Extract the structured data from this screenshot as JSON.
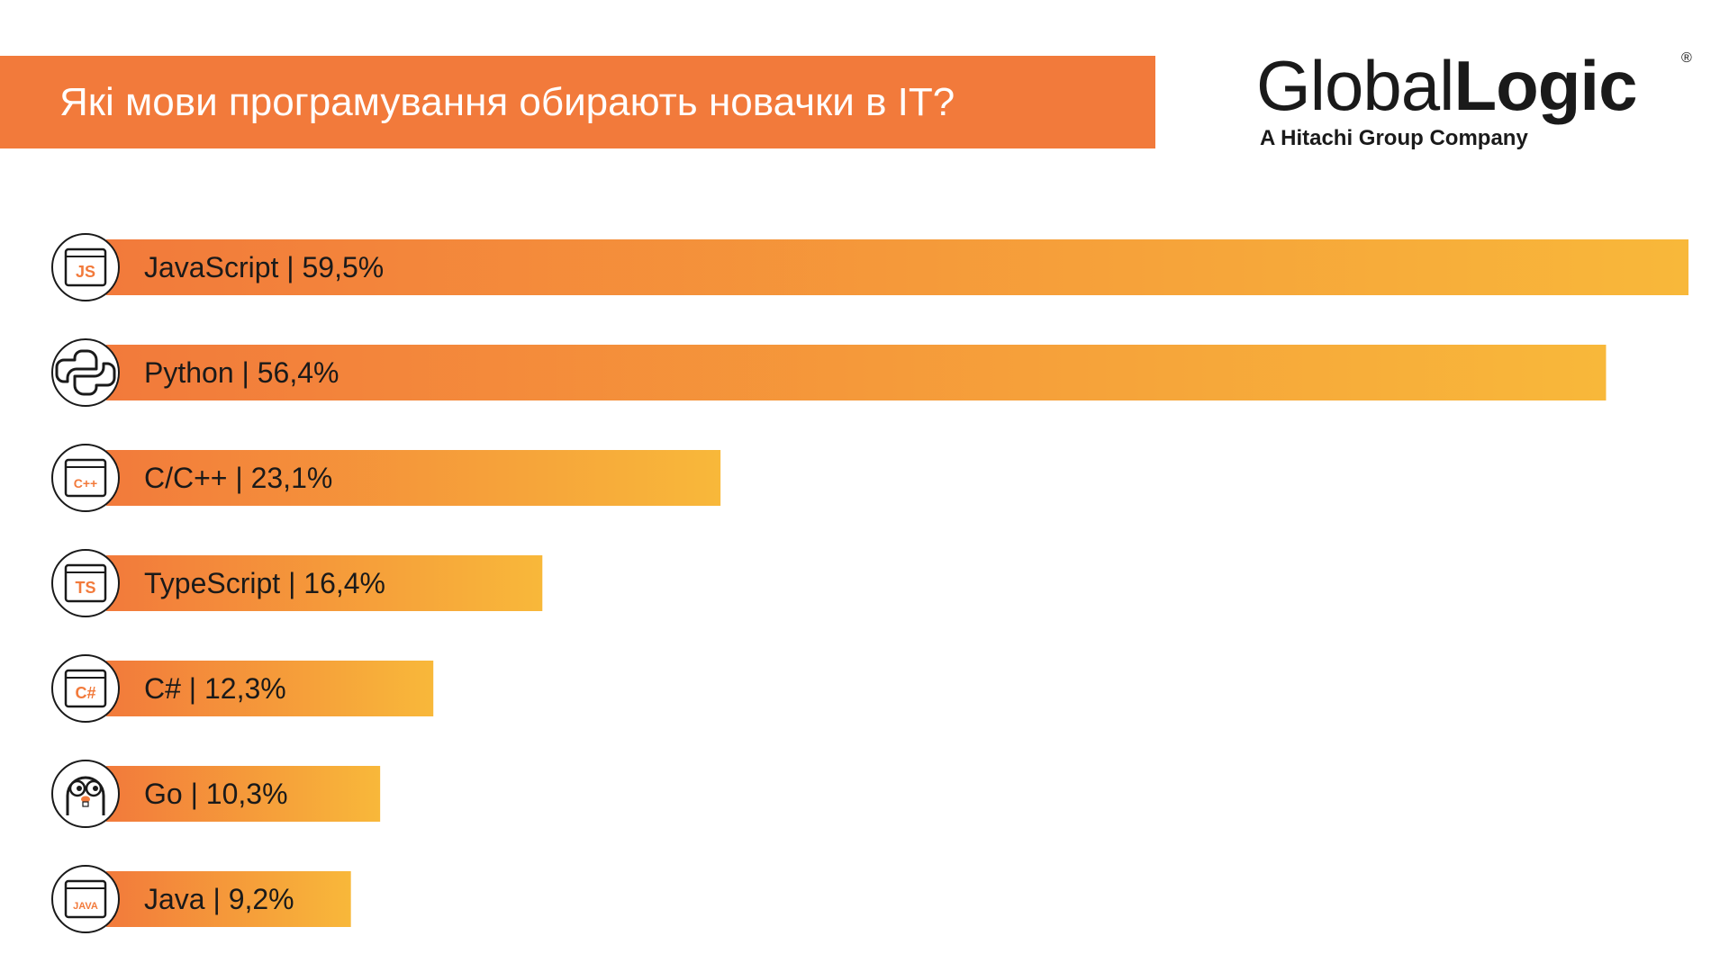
{
  "header": {
    "title": "Які мови програмування обирають новачки в IT?"
  },
  "logo": {
    "name_light": "Global",
    "name_bold": "Logic",
    "registered": "®",
    "tagline": "A Hitachi Group Company"
  },
  "colors": {
    "banner": "#f27a3b",
    "bar_start": "#f27a3b",
    "bar_end": "#f8b83a",
    "icon_accent": "#f27a3b"
  },
  "chart_data": {
    "type": "bar",
    "orientation": "horizontal",
    "categories": [
      "JavaScript",
      "Python",
      "C/C++",
      "TypeScript",
      "C#",
      "Go",
      "Java"
    ],
    "values": [
      59.5,
      56.4,
      23.1,
      16.4,
      12.3,
      10.3,
      9.2
    ],
    "value_labels": [
      "59,5%",
      "56,4%",
      "23,1%",
      "16,4%",
      "12,3%",
      "10,3%",
      "9,2%"
    ],
    "separator": "|",
    "icons": [
      "js-icon",
      "python-icon",
      "cpp-icon",
      "typescript-icon",
      "csharp-icon",
      "go-gopher-icon",
      "java-icon"
    ],
    "icon_text": [
      "JS",
      "",
      "C++",
      "TS",
      "C#",
      "",
      "JAVA"
    ],
    "xlim": [
      0,
      59.5
    ],
    "grid": false,
    "legend": "none"
  }
}
